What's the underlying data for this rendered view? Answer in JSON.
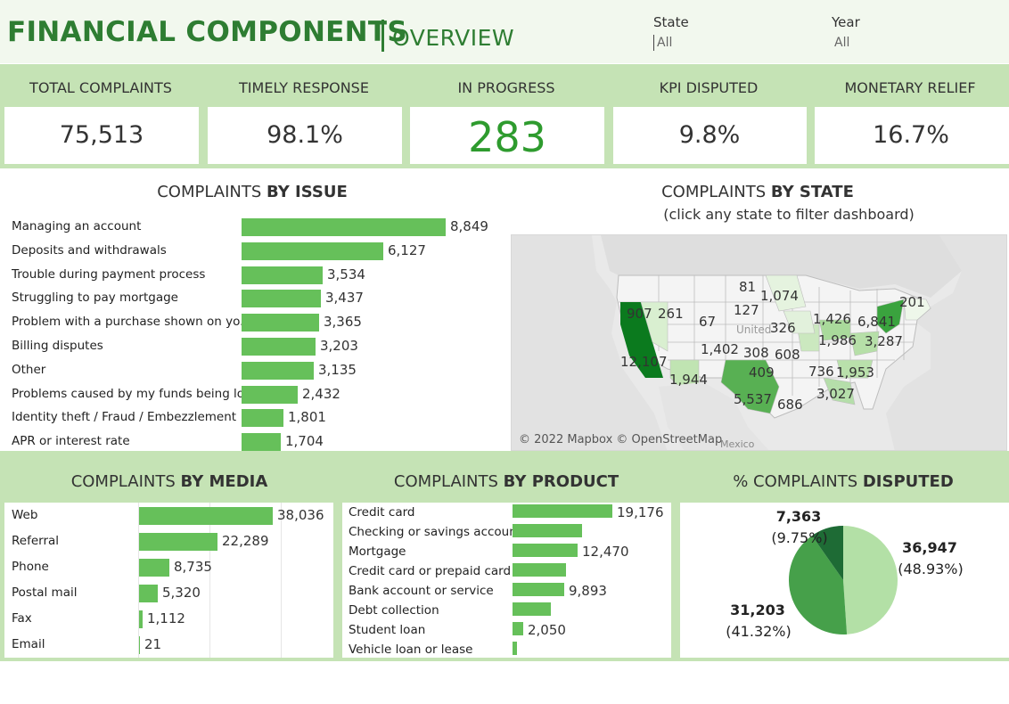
{
  "header": {
    "title": "FINANCIAL COMPONENTS",
    "subtitle": "OVERVIEW",
    "filters": [
      {
        "label": "State",
        "value": "All"
      },
      {
        "label": "Year",
        "value": "All"
      }
    ]
  },
  "kpis": [
    {
      "label": "TOTAL COMPLAINTS",
      "value": "75,513"
    },
    {
      "label": "TIMELY RESPONSE",
      "value": "98.1%"
    },
    {
      "label": "IN PROGRESS",
      "value": "283"
    },
    {
      "label": "KPI DISPUTED",
      "value": "9.8%"
    },
    {
      "label": "MONETARY RELIEF",
      "value": "16.7%"
    }
  ],
  "issue_title": {
    "prefix": "COMPLAINTS ",
    "bold": "BY ISSUE"
  },
  "state_title": {
    "prefix": "COMPLAINTS ",
    "bold": "BY STATE",
    "note": "(click any state to filter dashboard)"
  },
  "media_title": {
    "prefix": "COMPLAINTS ",
    "bold": "BY MEDIA"
  },
  "product_title": {
    "prefix": "COMPLAINTS ",
    "bold": "BY PRODUCT"
  },
  "disputed_title": {
    "prefix": "%  COMPLAINTS ",
    "bold": "DISPUTED"
  },
  "map": {
    "attribution": "© 2022 Mapbox © OpenStreetMap",
    "mexico_label": "Mexico",
    "united_label": "United",
    "state_values": [
      "907",
      "261",
      "81",
      "1,074",
      "201",
      "67",
      "127",
      "326",
      "1,426",
      "6,841",
      "1,986",
      "3,287",
      "12,107",
      "1,402",
      "308",
      "608",
      "409",
      "736",
      "1,953",
      "1,944",
      "5,537",
      "686",
      "3,027"
    ]
  },
  "chart_data": [
    {
      "type": "bar",
      "title": "COMPLAINTS BY ISSUE",
      "categories": [
        "Managing an account",
        "Deposits and withdrawals",
        "Trouble during payment process",
        "Struggling to pay mortgage",
        "Problem with a purchase shown on yo..",
        "Billing disputes",
        "Other",
        "Problems caused by my funds being low",
        "Identity theft / Fraud / Embezzlement",
        "APR or interest rate"
      ],
      "values": [
        8849,
        6127,
        3534,
        3437,
        3365,
        3203,
        3135,
        2432,
        1801,
        1704
      ],
      "labels": [
        "8,849",
        "6,127",
        "3,534",
        "3,437",
        "3,365",
        "3,203",
        "3,135",
        "2,432",
        "1,801",
        "1,704"
      ],
      "color": "#66c05a"
    },
    {
      "type": "bar",
      "title": "COMPLAINTS BY MEDIA",
      "categories": [
        "Web",
        "Referral",
        "Phone",
        "Postal mail",
        "Fax",
        "Email"
      ],
      "values": [
        38036,
        22289,
        8735,
        5320,
        1112,
        21
      ],
      "labels": [
        "38,036",
        "22,289",
        "8,735",
        "5,320",
        "1,112",
        "21"
      ],
      "color": "#66c05a"
    },
    {
      "type": "bar",
      "title": "COMPLAINTS BY PRODUCT",
      "categories": [
        "Credit card",
        "Checking or savings account",
        "Mortgage",
        "Credit card or prepaid card",
        "Bank account or service",
        "Debt collection",
        "Student loan",
        "Vehicle loan or lease"
      ],
      "values": [
        19176,
        13400,
        12470,
        10200,
        9893,
        7300,
        2050,
        900
      ],
      "labels": [
        "19,176",
        "",
        "12,470",
        "",
        "9,893",
        "",
        "2,050",
        ""
      ],
      "color": "#66c05a"
    },
    {
      "type": "pie",
      "title": "% COMPLAINTS DISPUTED",
      "slices": [
        {
          "value": 36947,
          "label": "36,947",
          "pct": "(48.93%)",
          "color": "#b3e0a6"
        },
        {
          "value": 31203,
          "label": "31,203",
          "pct": "(41.32%)",
          "color": "#46a04a"
        },
        {
          "value": 7363,
          "label": "7,363",
          "pct": "(9.75%)",
          "color": "#1e6b35"
        }
      ]
    }
  ]
}
